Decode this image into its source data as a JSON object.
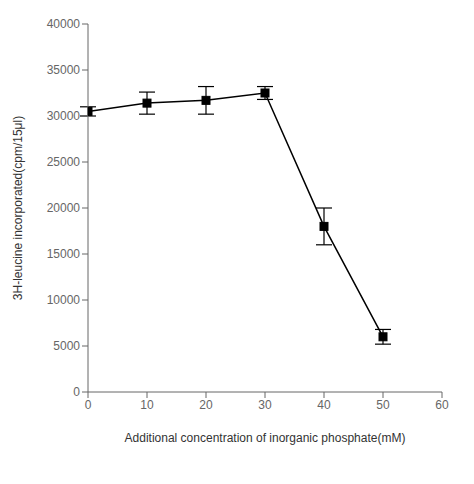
{
  "chart_data": {
    "type": "line",
    "x": [
      0,
      10,
      20,
      30,
      40,
      50
    ],
    "values": [
      30500,
      31400,
      31700,
      32500,
      18000,
      6000
    ],
    "yerr": [
      500,
      1200,
      1500,
      700,
      2000,
      800
    ],
    "xlim": [
      0,
      60
    ],
    "ylim": [
      0,
      40000
    ],
    "xticks": [
      0,
      10,
      20,
      30,
      40,
      50,
      60
    ],
    "yticks": [
      0,
      5000,
      10000,
      15000,
      20000,
      25000,
      30000,
      35000,
      40000
    ],
    "xlabel": "Additional concentration of inorganic phosphate(mM)",
    "ylabel": "3H-leucine incorporated(cpm/15μl)",
    "color": "#000000",
    "marker": "square",
    "grid": false
  }
}
